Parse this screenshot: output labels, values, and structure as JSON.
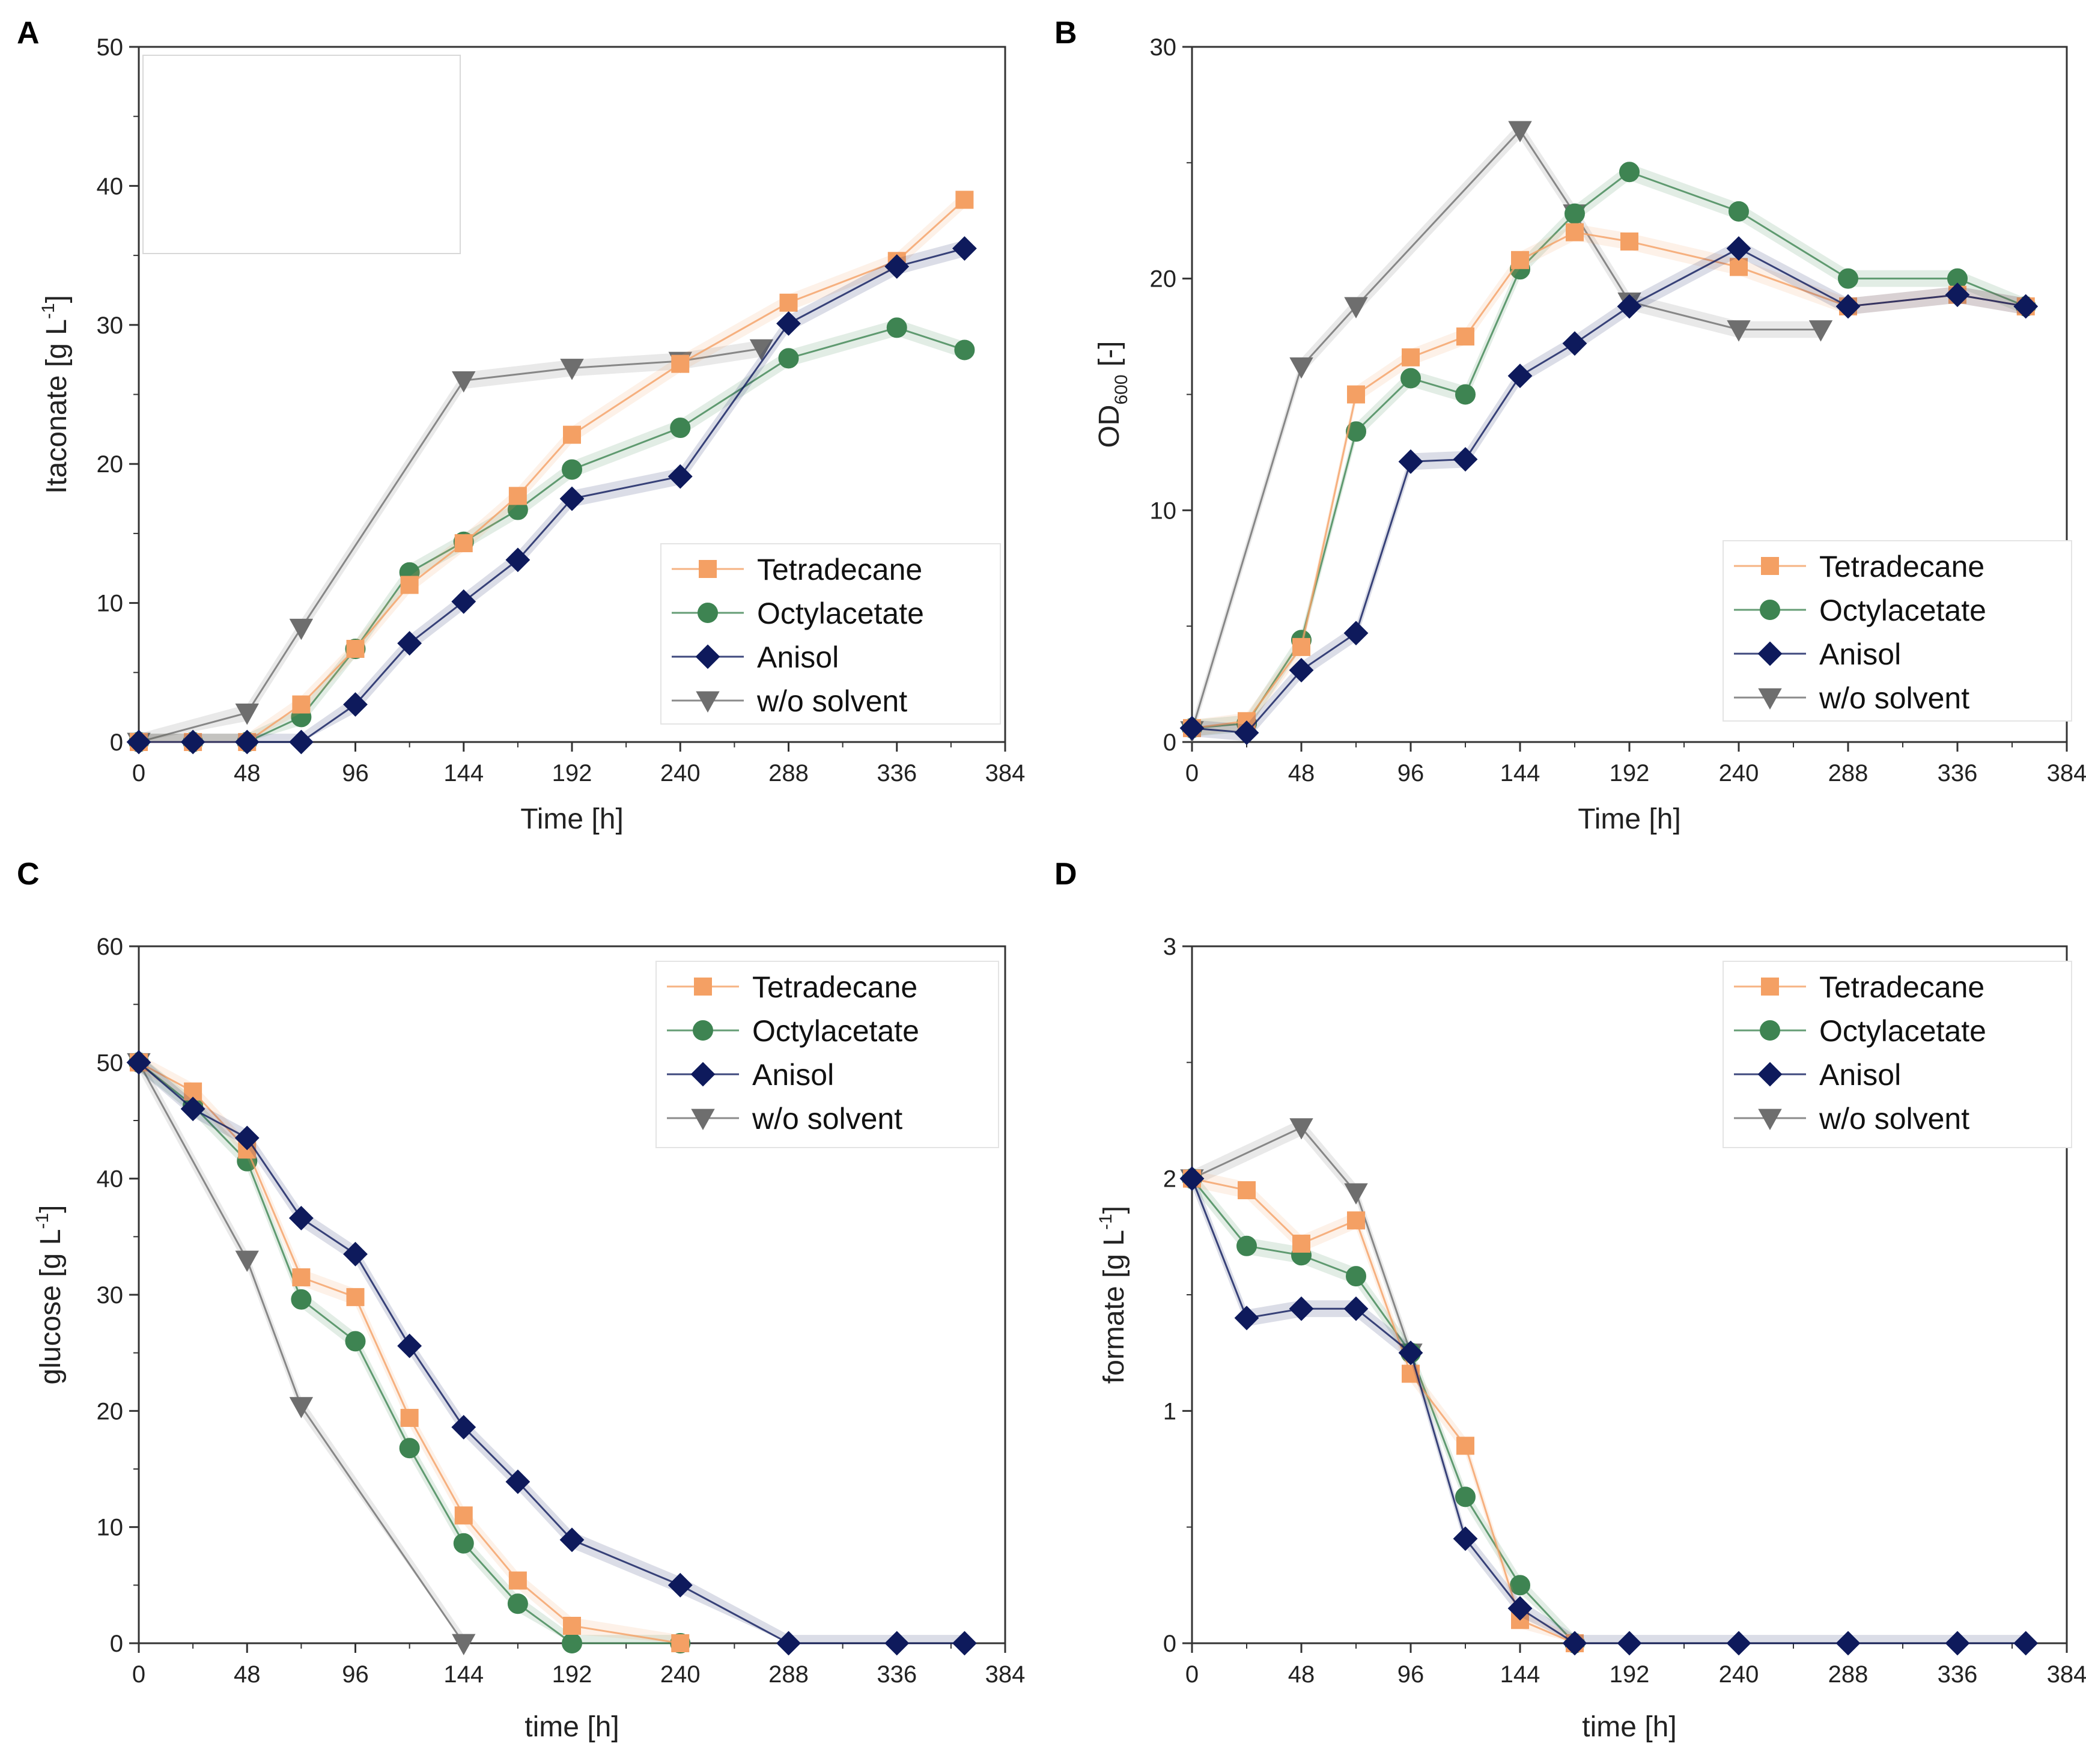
{
  "colors": {
    "Tetradecane": "#F4A064",
    "Octylacetate": "#3E8452",
    "Anisol": "#0E1A5C",
    "w/o solvent": "#6E6E6E"
  },
  "chart_data": [
    {
      "panel": "A",
      "type": "line",
      "xlabel": "Time [h]",
      "ylabel_main": "Itaconate [g L",
      "ylabel_sup": "-1",
      "ylabel_end": "]",
      "xlim": [
        0,
        384
      ],
      "ylim": [
        0,
        50
      ],
      "xticks": [
        "0",
        "48",
        "96",
        "144",
        "192",
        "240",
        "288",
        "336",
        "384"
      ],
      "yticks": [
        "0",
        "10",
        "20",
        "30",
        "40",
        "50"
      ],
      "legend": [
        "Tetradecane",
        "Octylacetate",
        "Anisol",
        "w/o solvent"
      ],
      "series": [
        {
          "name": "Tetradecane",
          "marker": "square",
          "x": [
            0,
            24,
            48,
            72,
            96,
            120,
            144,
            168,
            192,
            240,
            288,
            336,
            366
          ],
          "y": [
            0,
            0,
            0,
            2.7,
            6.7,
            11.3,
            14.3,
            17.7,
            22.1,
            27.2,
            31.6,
            34.6,
            39.0
          ]
        },
        {
          "name": "Octylacetate",
          "marker": "circle",
          "x": [
            0,
            24,
            48,
            72,
            96,
            120,
            144,
            168,
            192,
            240,
            288,
            336,
            366
          ],
          "y": [
            0,
            0,
            0,
            1.8,
            6.7,
            12.2,
            14.4,
            16.7,
            19.6,
            22.6,
            27.6,
            29.8,
            28.2
          ]
        },
        {
          "name": "Anisol",
          "marker": "diamond",
          "x": [
            0,
            24,
            48,
            72,
            96,
            120,
            144,
            168,
            192,
            240,
            288,
            336,
            366
          ],
          "y": [
            0,
            0,
            0,
            0,
            2.7,
            7.1,
            10.1,
            13.1,
            17.5,
            19.1,
            30.1,
            34.2,
            35.5
          ]
        },
        {
          "name": "w/o solvent",
          "marker": "triangle-down",
          "x": [
            0,
            48,
            72,
            144,
            192,
            240,
            276
          ],
          "y": [
            0,
            2.1,
            8.2,
            26.0,
            26.9,
            27.4,
            28.3
          ]
        }
      ]
    },
    {
      "panel": "B",
      "type": "line",
      "xlabel": "Time [h]",
      "ylabel_main": "OD",
      "ylabel_sub": "600",
      "ylabel_end": " [-]",
      "xlim": [
        0,
        384
      ],
      "ylim": [
        0,
        30
      ],
      "xticks": [
        "0",
        "48",
        "96",
        "144",
        "192",
        "240",
        "288",
        "336",
        "384"
      ],
      "yticks": [
        "0",
        "10",
        "20",
        "30"
      ],
      "legend": [
        "Tetradecane",
        "Octylacetate",
        "Anisol",
        "w/o solvent"
      ],
      "series": [
        {
          "name": "Tetradecane",
          "marker": "square",
          "x": [
            0,
            24,
            48,
            72,
            96,
            120,
            144,
            168,
            192,
            240,
            288,
            336,
            366
          ],
          "y": [
            0.6,
            0.9,
            4.1,
            15.0,
            16.6,
            17.5,
            20.8,
            22.0,
            21.6,
            20.5,
            18.8,
            19.3,
            18.8
          ]
        },
        {
          "name": "Octylacetate",
          "marker": "circle",
          "x": [
            0,
            24,
            48,
            72,
            96,
            120,
            144,
            168,
            192,
            240,
            288,
            336,
            366
          ],
          "y": [
            0.6,
            0.8,
            4.4,
            13.4,
            15.7,
            15.0,
            20.4,
            22.8,
            24.6,
            22.9,
            20.0,
            20.0,
            18.8
          ]
        },
        {
          "name": "Anisol",
          "marker": "diamond",
          "x": [
            0,
            24,
            48,
            72,
            96,
            120,
            144,
            168,
            192,
            240,
            288,
            336,
            366
          ],
          "y": [
            0.6,
            0.4,
            3.1,
            4.7,
            12.1,
            12.2,
            15.8,
            17.2,
            18.8,
            21.3,
            18.8,
            19.3,
            18.8
          ]
        },
        {
          "name": "w/o solvent",
          "marker": "triangle-down",
          "x": [
            0,
            48,
            72,
            144,
            168,
            192,
            240,
            276
          ],
          "y": [
            0.5,
            16.2,
            18.8,
            26.4,
            22.8,
            19.0,
            17.8,
            17.8
          ]
        }
      ]
    },
    {
      "panel": "C",
      "type": "line",
      "xlabel": "time [h]",
      "ylabel_main": "glucose [g L",
      "ylabel_sup": "-1",
      "ylabel_end": "]",
      "xlim": [
        0,
        384
      ],
      "ylim": [
        0,
        60
      ],
      "xticks": [
        "0",
        "48",
        "96",
        "144",
        "192",
        "240",
        "288",
        "336",
        "384"
      ],
      "yticks": [
        "0",
        "10",
        "20",
        "30",
        "40",
        "50",
        "60"
      ],
      "legend": [
        "Tetradecane",
        "Octylacetate",
        "Anisol",
        "w/o solvent"
      ],
      "series": [
        {
          "name": "Tetradecane",
          "marker": "square",
          "x": [
            0,
            24,
            48,
            72,
            96,
            120,
            144,
            168,
            192,
            240
          ],
          "y": [
            50.0,
            47.5,
            42.5,
            31.5,
            29.8,
            19.4,
            11.0,
            5.4,
            1.5,
            0
          ]
        },
        {
          "name": "Octylacetate",
          "marker": "circle",
          "x": [
            0,
            24,
            48,
            72,
            96,
            120,
            144,
            168,
            192,
            240
          ],
          "y": [
            50.0,
            46.3,
            41.5,
            29.6,
            26.0,
            16.8,
            8.6,
            3.4,
            0,
            0
          ]
        },
        {
          "name": "Anisol",
          "marker": "diamond",
          "x": [
            0,
            24,
            48,
            72,
            96,
            120,
            144,
            168,
            192,
            240,
            288,
            336,
            366
          ],
          "y": [
            50.0,
            46.0,
            43.5,
            36.6,
            33.5,
            25.6,
            18.6,
            13.9,
            8.9,
            5.0,
            0,
            0,
            0
          ]
        },
        {
          "name": "w/o solvent",
          "marker": "triangle-down",
          "x": [
            0,
            48,
            72,
            144
          ],
          "y": [
            50.0,
            33.0,
            20.4,
            0
          ]
        }
      ]
    },
    {
      "panel": "D",
      "type": "line",
      "xlabel": "time [h]",
      "ylabel_main": "formate [g L",
      "ylabel_sup": "-1",
      "ylabel_end": "]",
      "xlim": [
        0,
        384
      ],
      "ylim": [
        0,
        3
      ],
      "xticks": [
        "0",
        "48",
        "96",
        "144",
        "192",
        "240",
        "288",
        "336",
        "384"
      ],
      "yticks": [
        "0",
        "1",
        "2",
        "3"
      ],
      "legend": [
        "Tetradecane",
        "Octylacetate",
        "Anisol",
        "w/o solvent"
      ],
      "series": [
        {
          "name": "Tetradecane",
          "marker": "square",
          "x": [
            0,
            24,
            48,
            72,
            96,
            120,
            144,
            168
          ],
          "y": [
            2.0,
            1.95,
            1.72,
            1.82,
            1.16,
            0.85,
            0.1,
            0
          ]
        },
        {
          "name": "Octylacetate",
          "marker": "circle",
          "x": [
            0,
            24,
            48,
            72,
            96,
            120,
            144,
            168
          ],
          "y": [
            2.0,
            1.71,
            1.67,
            1.58,
            1.25,
            0.63,
            0.25,
            0
          ]
        },
        {
          "name": "Anisol",
          "marker": "diamond",
          "x": [
            0,
            24,
            48,
            72,
            96,
            120,
            144,
            168,
            192,
            240,
            288,
            336,
            366
          ],
          "y": [
            2.0,
            1.4,
            1.44,
            1.44,
            1.25,
            0.45,
            0.15,
            0,
            0,
            0,
            0,
            0,
            0
          ]
        },
        {
          "name": "w/o solvent",
          "marker": "triangle-down",
          "x": [
            0,
            48,
            72,
            96
          ],
          "y": [
            2.0,
            2.22,
            1.94,
            1.25
          ]
        }
      ]
    }
  ]
}
